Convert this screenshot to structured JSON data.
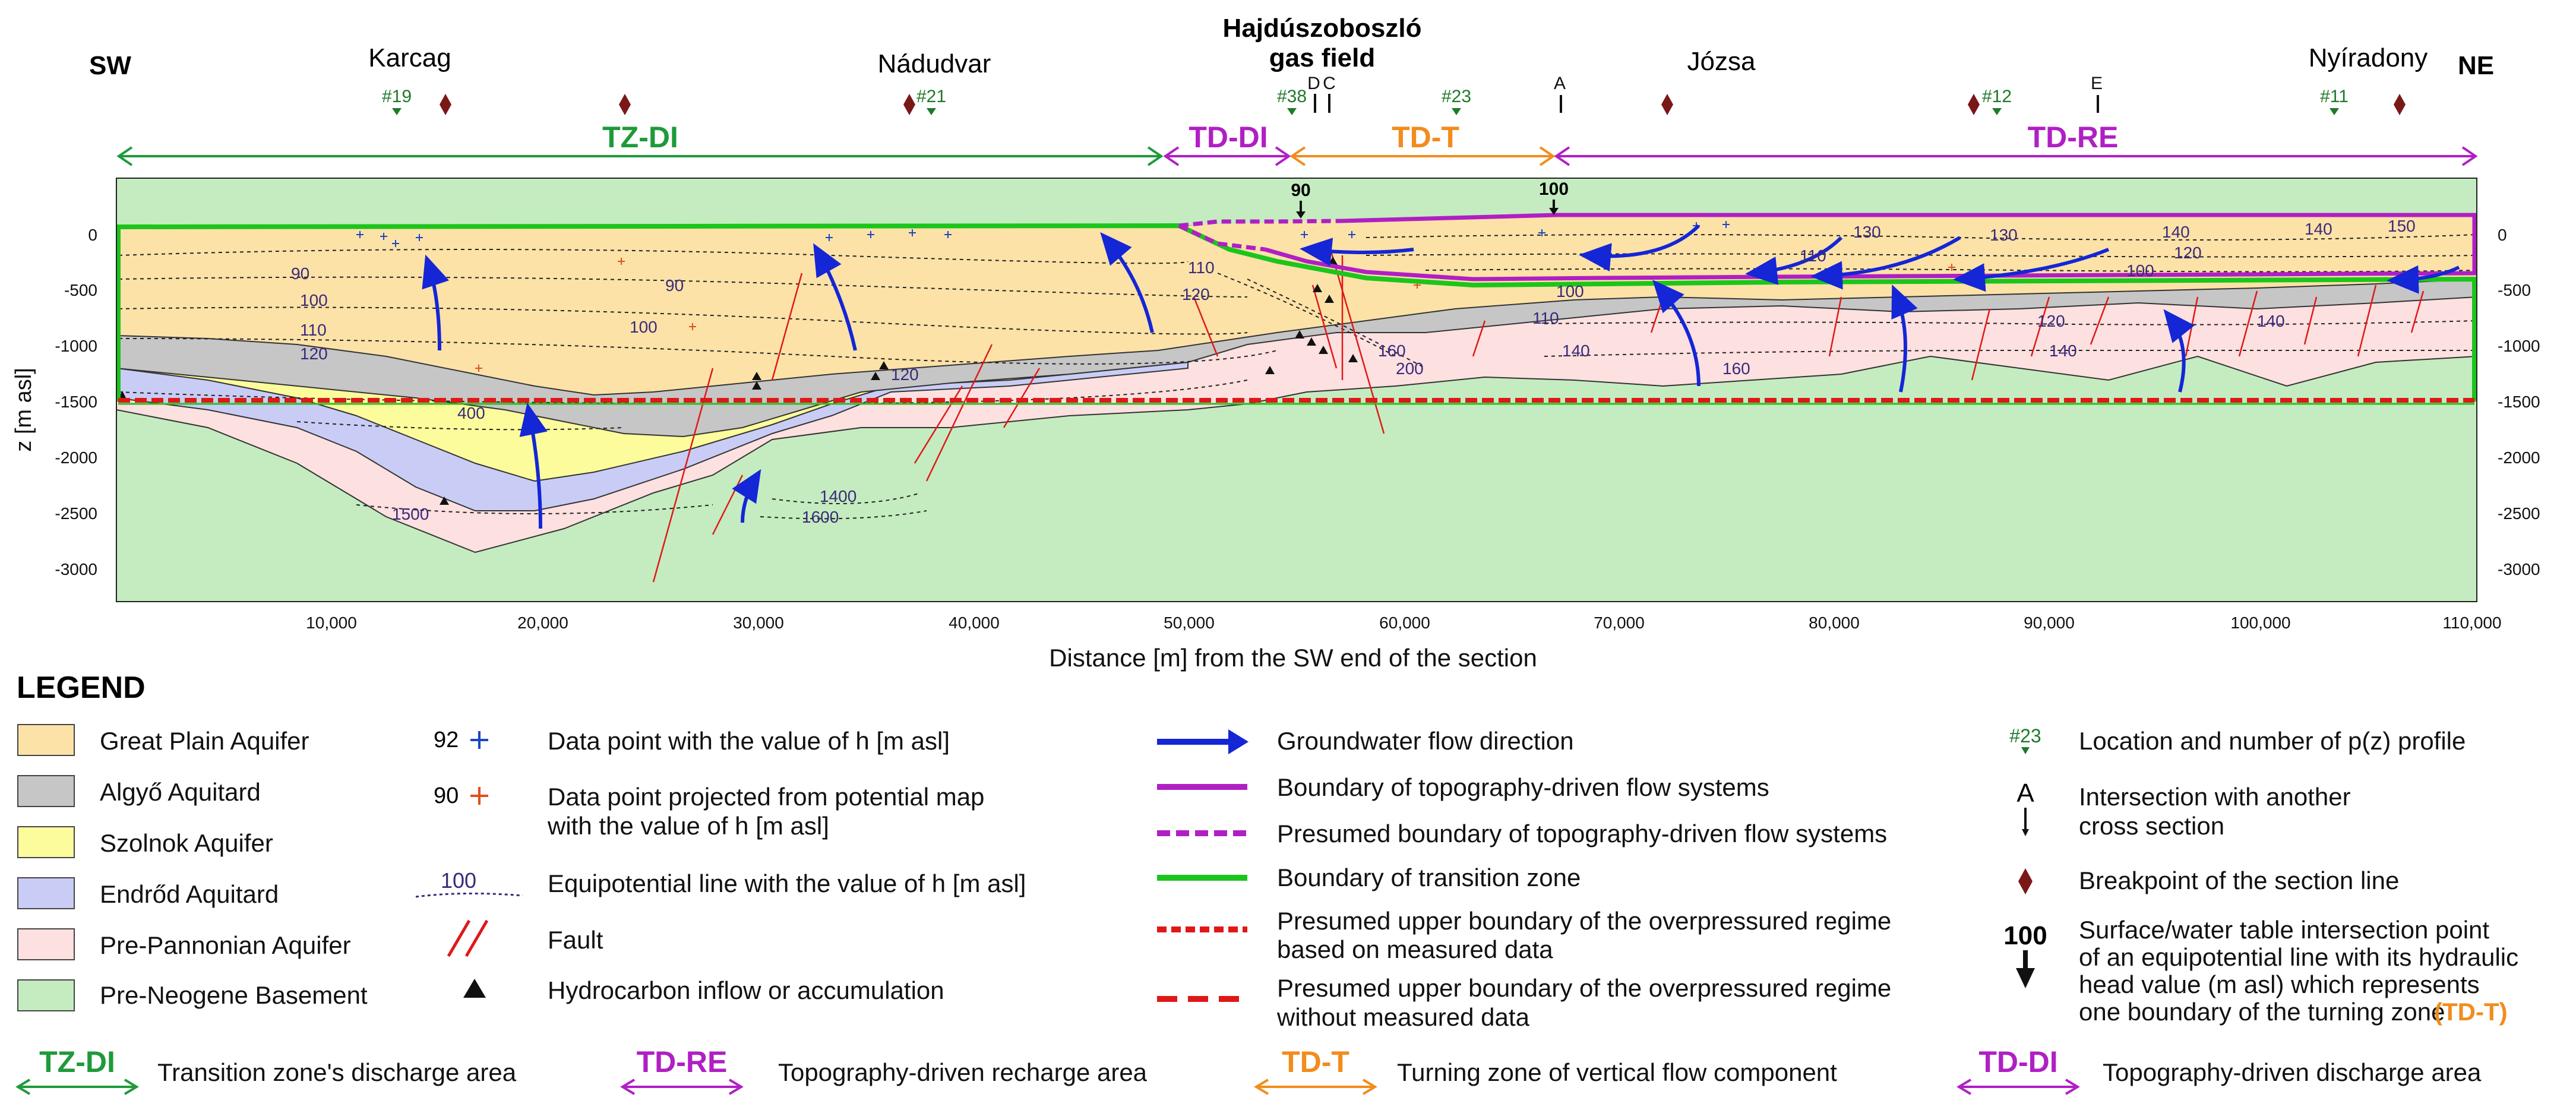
{
  "header": {
    "sw": "SW",
    "ne": "NE",
    "gas_field_line1": "Hajdúszoboszló",
    "gas_field_line2": "gas field",
    "towns": [
      "Karcag",
      "Nádudvar",
      "Józsa",
      "Nyíradony"
    ],
    "profiles": [
      "#19",
      "#21",
      "#38",
      "#23",
      "#12",
      "#11"
    ],
    "cross_sections": [
      "D",
      "C",
      "A",
      "E"
    ]
  },
  "zones": [
    {
      "label": "TZ-DI",
      "color": "#1f9a3a"
    },
    {
      "label": "TD-DI",
      "color": "#b01fc4"
    },
    {
      "label": "TD-T",
      "color": "#f28c1c"
    },
    {
      "label": "TD-RE",
      "color": "#b01fc4"
    }
  ],
  "turning_markers": [
    "90",
    "100"
  ],
  "axes": {
    "ylabel": "z [m asl]",
    "xlabel": "Distance [m] from the SW end of the section",
    "y_ticks": [
      "0",
      "-500",
      "-1000",
      "-1500",
      "-2000",
      "-2500",
      "-3000"
    ],
    "y_ticks_right": [
      "0",
      "-500",
      "-1000",
      "-1500",
      "-2000",
      "-2500",
      "-3000"
    ],
    "x_ticks": [
      "10,000",
      "20,000",
      "30,000",
      "40,000",
      "50,000",
      "60,000",
      "70,000",
      "80,000",
      "90,000",
      "100,000",
      "110,000"
    ]
  },
  "equipotential_labels": [
    "90",
    "100",
    "110",
    "120",
    "90",
    "100",
    "110",
    "120",
    "130",
    "140",
    "150",
    "100",
    "110",
    "120",
    "140",
    "160",
    "200",
    "140",
    "160",
    "120",
    "140",
    "400",
    "1500",
    "1400",
    "1600",
    "100",
    "130",
    "140",
    "110",
    "120"
  ],
  "legend": {
    "title": "LEGEND",
    "units": [
      {
        "label": "Great Plain Aquifer",
        "color": "#fde2a8"
      },
      {
        "label": "Algyő Aquitard",
        "color": "#c6c6c6"
      },
      {
        "label": "Szolnok Aquifer",
        "color": "#fcfc9c"
      },
      {
        "label": "Endrőd Aquitard",
        "color": "#c9cdf5"
      },
      {
        "label": "Pre-Pannonian Aquifer",
        "color": "#fde0e0"
      },
      {
        "label": "Pre-Neogene Basement",
        "color": "#c4ecc0"
      }
    ],
    "symbols": [
      {
        "sample": "92",
        "label": "Data point with the value of h [m asl]"
      },
      {
        "sample": "90",
        "label_line1": "Data point projected from potential map",
        "label_line2": "with the value of h [m asl]"
      },
      {
        "sample": "100",
        "label": "Equipotential line with the value of h [m asl]"
      },
      {
        "label": "Fault"
      },
      {
        "label": "Hydrocarbon inflow or accumulation"
      }
    ],
    "lines": [
      {
        "label": "Groundwater flow direction"
      },
      {
        "label": "Boundary of topography-driven flow systems"
      },
      {
        "label": "Presumed boundary of topography-driven flow systems"
      },
      {
        "label": "Boundary of transition zone"
      },
      {
        "label_line1": "Presumed upper boundary of the overpressured regime",
        "label_line2": "based on measured data"
      },
      {
        "label_line1": "Presumed upper boundary of the overpressured regime",
        "label_line2": "without measured data"
      }
    ],
    "markers": [
      {
        "sample": "#23",
        "label": "Location and number of p(z) profile"
      },
      {
        "sample": "A",
        "label_line1": "Intersection with another",
        "label_line2": "cross section"
      },
      {
        "label": "Breakpoint of the section line"
      },
      {
        "sample": "100",
        "label_line1": "Surface/water table intersection point",
        "label_line2": "of an equipotential line with its hydraulic",
        "label_line3": "head value (m asl) which represents",
        "label_line4": "one boundary of the turning zone",
        "label_accent": "(TD-T)"
      }
    ],
    "zone_items": [
      {
        "badge": "TZ-DI",
        "label": "Transition zone's discharge area",
        "color": "#1f9a3a"
      },
      {
        "badge": "TD-RE",
        "label": "Topography-driven recharge area",
        "color": "#b01fc4"
      },
      {
        "badge": "TD-T",
        "label": "Turning zone of vertical flow component",
        "color": "#f28c1c"
      },
      {
        "badge": "TD-DI",
        "label": "Topography-driven discharge area",
        "color": "#b01fc4"
      }
    ]
  }
}
